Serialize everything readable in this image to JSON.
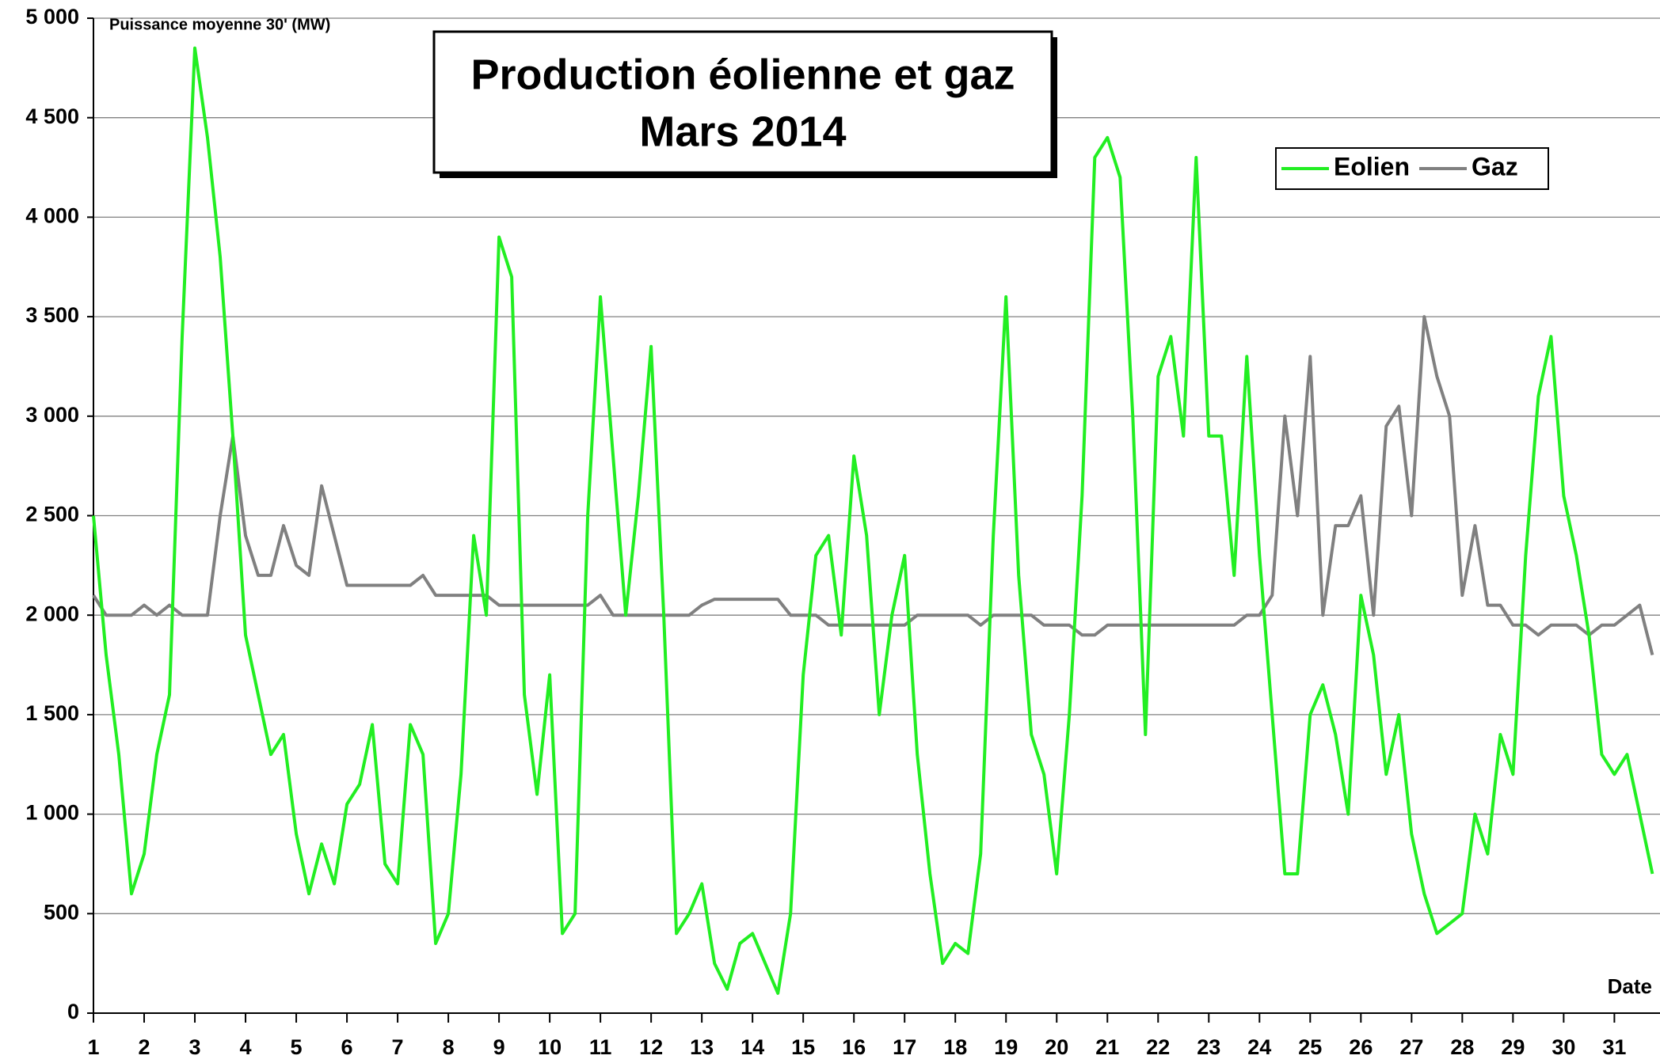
{
  "chart_data": {
    "type": "line",
    "title": "Production éolienne et gaz",
    "subtitle": "Mars 2014",
    "y_label": "Puissance moyenne 30' (MW)",
    "x_label": "Date",
    "xlim": [
      1,
      31.9
    ],
    "xticks": [
      1,
      2,
      3,
      4,
      5,
      6,
      7,
      8,
      9,
      10,
      11,
      12,
      13,
      14,
      15,
      16,
      17,
      18,
      19,
      20,
      21,
      22,
      23,
      24,
      25,
      26,
      27,
      28,
      29,
      30,
      31
    ],
    "ylim": [
      0,
      5000
    ],
    "yticks": [
      {
        "value": 0,
        "label": "0"
      },
      {
        "value": 500,
        "label": "500"
      },
      {
        "value": 1000,
        "label": "1 000"
      },
      {
        "value": 1500,
        "label": "1 500"
      },
      {
        "value": 2000,
        "label": "2 000"
      },
      {
        "value": 2500,
        "label": "2 500"
      },
      {
        "value": 3000,
        "label": "3 000"
      },
      {
        "value": 3500,
        "label": "3 500"
      },
      {
        "value": 4000,
        "label": "4 000"
      },
      {
        "value": 4500,
        "label": "4 500"
      },
      {
        "value": 5000,
        "label": "5 000"
      }
    ],
    "grid": true,
    "legend": "top-right",
    "x": [
      1,
      1.25,
      1.5,
      1.75,
      2,
      2.25,
      2.5,
      2.75,
      3,
      3.25,
      3.5,
      3.75,
      4,
      4.25,
      4.5,
      4.75,
      5,
      5.25,
      5.5,
      5.75,
      6,
      6.25,
      6.5,
      6.75,
      7,
      7.25,
      7.5,
      7.75,
      8,
      8.25,
      8.5,
      8.75,
      9,
      9.25,
      9.5,
      9.75,
      10,
      10.25,
      10.5,
      10.75,
      11,
      11.25,
      11.5,
      11.75,
      12,
      12.25,
      12.5,
      12.75,
      13,
      13.25,
      13.5,
      13.75,
      14,
      14.25,
      14.5,
      14.75,
      15,
      15.25,
      15.5,
      15.75,
      16,
      16.25,
      16.5,
      16.75,
      17,
      17.25,
      17.5,
      17.75,
      18,
      18.25,
      18.5,
      18.75,
      19,
      19.25,
      19.5,
      19.75,
      20,
      20.25,
      20.5,
      20.75,
      21,
      21.25,
      21.5,
      21.75,
      22,
      22.25,
      22.5,
      22.75,
      23,
      23.25,
      23.5,
      23.75,
      24,
      24.25,
      24.5,
      24.75,
      25,
      25.25,
      25.5,
      25.75,
      26,
      26.25,
      26.5,
      26.75,
      27,
      27.25,
      27.5,
      27.75,
      28,
      28.25,
      28.5,
      28.75,
      29,
      29.25,
      29.5,
      29.75,
      30,
      30.25,
      30.5,
      30.75,
      31,
      31.25,
      31.5,
      31.75
    ],
    "series": [
      {
        "name": "Eolien",
        "color": "#22ee22",
        "values": [
          2500,
          1800,
          1300,
          600,
          800,
          1300,
          1600,
          3400,
          4850,
          4400,
          3800,
          2900,
          1900,
          1600,
          1300,
          1400,
          900,
          600,
          850,
          650,
          1050,
          1150,
          1450,
          750,
          650,
          1450,
          1300,
          350,
          500,
          1200,
          2400,
          2000,
          3900,
          3700,
          1600,
          1100,
          1700,
          400,
          500,
          2500,
          3600,
          2800,
          2000,
          2600,
          3350,
          2000,
          400,
          500,
          650,
          250,
          120,
          350,
          400,
          250,
          100,
          500,
          1700,
          2300,
          2400,
          1900,
          2800,
          2400,
          1500,
          2000,
          2300,
          1300,
          700,
          250,
          350,
          300,
          800,
          2400,
          3600,
          2200,
          1400,
          1200,
          700,
          1500,
          2600,
          4300,
          4400,
          4200,
          3000,
          1400,
          3200,
          3400,
          2900,
          4300,
          2900,
          2900,
          2200,
          3300,
          2300,
          1500,
          700,
          700,
          1500,
          1650,
          1400,
          1000,
          2100,
          1800,
          1200,
          1500,
          900,
          600,
          400,
          450,
          500,
          1000,
          800,
          1400,
          1200,
          2300,
          3100,
          3400,
          2600,
          2300,
          1900,
          1300,
          1200,
          1300,
          1000,
          700
        ]
      },
      {
        "name": "Gaz",
        "color": "#808080",
        "values": [
          2100,
          2000,
          2000,
          2000,
          2050,
          2000,
          2050,
          2000,
          2000,
          2000,
          2500,
          2900,
          2400,
          2200,
          2200,
          2450,
          2250,
          2200,
          2650,
          2400,
          2150,
          2150,
          2150,
          2150,
          2150,
          2150,
          2200,
          2100,
          2100,
          2100,
          2100,
          2100,
          2050,
          2050,
          2050,
          2050,
          2050,
          2050,
          2050,
          2050,
          2100,
          2000,
          2000,
          2000,
          2000,
          2000,
          2000,
          2000,
          2050,
          2080,
          2080,
          2080,
          2080,
          2080,
          2080,
          2000,
          2000,
          2000,
          1950,
          1950,
          1950,
          1950,
          1950,
          1950,
          1950,
          2000,
          2000,
          2000,
          2000,
          2000,
          1950,
          2000,
          2000,
          2000,
          2000,
          1950,
          1950,
          1950,
          1900,
          1900,
          1950,
          1950,
          1950,
          1950,
          1950,
          1950,
          1950,
          1950,
          1950,
          1950,
          1950,
          2000,
          2000,
          2100,
          3000,
          2500,
          3300,
          2000,
          2450,
          2450,
          2600,
          2000,
          2950,
          3050,
          2500,
          3500,
          3200,
          3000,
          2100,
          2450,
          2050,
          2050,
          1950,
          1950,
          1900,
          1950,
          1950,
          1950,
          1900,
          1950,
          1950,
          2000,
          2050,
          1800
        ]
      }
    ]
  }
}
